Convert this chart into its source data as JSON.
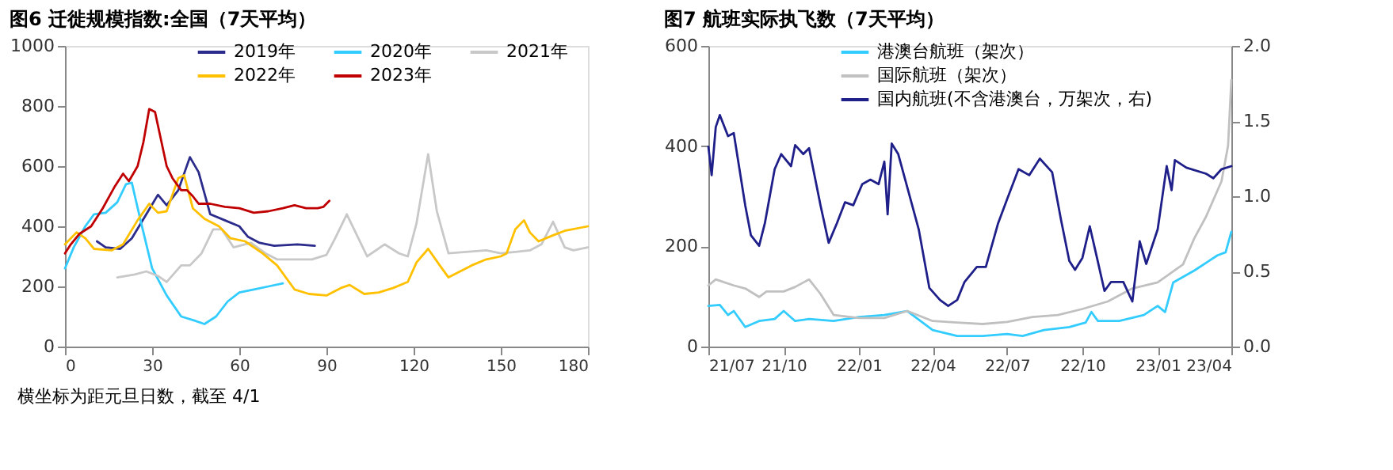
{
  "chart_data": [
    {
      "type": "line",
      "title": "图6 迁徙规模指数:全国（7天平均）",
      "legend": "top",
      "grid": false,
      "xlim": [
        0,
        180
      ],
      "xticks": [
        0,
        30,
        60,
        90,
        120,
        150,
        180
      ],
      "ylim": [
        0,
        1000
      ],
      "yticks": [
        0,
        200,
        400,
        600,
        800,
        1000
      ],
      "annotations": [
        "横坐标为距元旦日数，截至 4/1"
      ],
      "series": [
        {
          "name": "2019年",
          "color": "#2b2b8c",
          "x": [
            11,
            14,
            19,
            23,
            28,
            32,
            35,
            39,
            43,
            46,
            50,
            55,
            60,
            63,
            67,
            72,
            80,
            86
          ],
          "values": [
            350,
            330,
            325,
            360,
            440,
            505,
            470,
            520,
            630,
            580,
            440,
            420,
            400,
            365,
            345,
            335,
            340,
            335
          ]
        },
        {
          "name": "2020年",
          "color": "#33ccff",
          "x": [
            0,
            3,
            7,
            10,
            14,
            18,
            21,
            23,
            26,
            30,
            35,
            40,
            45,
            48,
            52,
            56,
            60,
            65,
            70,
            75
          ],
          "values": [
            260,
            330,
            400,
            440,
            445,
            480,
            540,
            545,
            420,
            260,
            170,
            100,
            85,
            75,
            100,
            150,
            180,
            190,
            200,
            210
          ]
        },
        {
          "name": "2021年",
          "color": "#c8c8c8",
          "x": [
            18,
            24,
            28,
            32,
            35,
            40,
            43,
            47,
            51,
            54,
            58,
            64,
            69,
            73,
            80,
            85,
            90,
            93,
            97,
            100,
            104,
            110,
            115,
            118,
            121,
            125,
            128,
            132,
            138,
            145,
            150,
            155,
            160,
            164,
            168,
            172,
            175,
            180
          ],
          "values": [
            230,
            240,
            250,
            235,
            215,
            270,
            270,
            310,
            390,
            390,
            330,
            345,
            310,
            290,
            290,
            290,
            305,
            360,
            440,
            380,
            300,
            340,
            310,
            300,
            410,
            640,
            450,
            310,
            315,
            320,
            310,
            315,
            320,
            340,
            415,
            330,
            320,
            330
          ]
        },
        {
          "name": "2022年",
          "color": "#ffc000",
          "x": [
            0,
            4,
            7,
            10,
            16,
            20,
            25,
            29,
            32,
            35,
            39,
            41,
            44,
            48,
            53,
            57,
            62,
            68,
            73,
            79,
            84,
            90,
            95,
            98,
            103,
            108,
            113,
            118,
            121,
            125,
            129,
            132,
            140,
            145,
            150,
            152,
            155,
            158,
            160,
            163,
            168,
            172,
            180
          ],
          "values": [
            340,
            380,
            360,
            325,
            320,
            340,
            420,
            475,
            445,
            450,
            560,
            570,
            460,
            425,
            400,
            360,
            350,
            310,
            270,
            190,
            175,
            170,
            195,
            205,
            175,
            180,
            195,
            215,
            280,
            325,
            270,
            230,
            270,
            290,
            300,
            310,
            390,
            420,
            380,
            350,
            370,
            385,
            400
          ]
        },
        {
          "name": "2023年",
          "color": "#c00000",
          "x": [
            0,
            2,
            5,
            9,
            13,
            17,
            20,
            22,
            25,
            27,
            29,
            31,
            33,
            35,
            37,
            40,
            42,
            44,
            46,
            50,
            55,
            60,
            65,
            70,
            75,
            79,
            83,
            87,
            89,
            91
          ],
          "values": [
            310,
            340,
            375,
            400,
            460,
            530,
            575,
            550,
            600,
            680,
            790,
            780,
            690,
            600,
            560,
            520,
            520,
            500,
            475,
            475,
            465,
            460,
            445,
            450,
            460,
            470,
            460,
            460,
            465,
            485
          ]
        }
      ]
    },
    {
      "type": "line",
      "title": "图7 航班实际执飞数（7天平均）",
      "legend": "top",
      "grid": false,
      "xlim": [
        "2021-07-01",
        "2023-04-01"
      ],
      "xticks": [
        {
          "value": "2021-07-01",
          "label": "21/07"
        },
        {
          "value": "2021-10-01",
          "label": "21/10"
        },
        {
          "value": "2022-01-01",
          "label": "22/01"
        },
        {
          "value": "2022-04-01",
          "label": "22/04"
        },
        {
          "value": "2022-07-01",
          "label": "22/07"
        },
        {
          "value": "2022-10-01",
          "label": "22/10"
        },
        {
          "value": "2023-01-01",
          "label": "23/01"
        },
        {
          "value": "2023-04-01",
          "label": "23/04"
        }
      ],
      "ylim": [
        0,
        600
      ],
      "yticks": [
        0,
        200,
        400,
        600
      ],
      "y2lim": [
        0,
        2.0
      ],
      "y2ticks": [
        {
          "value": 0,
          "label": "0.0"
        },
        0.5,
        {
          "value": 1,
          "label": "1.0"
        },
        1.5,
        {
          "value": 2,
          "label": "2.0"
        }
      ],
      "series": [
        {
          "name": "港澳台航班（架次）",
          "color": "#33ccff",
          "x": [
            "2021-07-01",
            "2021-07-15",
            "2021-07-25",
            "2021-08-01",
            "2021-08-15",
            "2021-09-01",
            "2021-09-20",
            "2021-10-01",
            "2021-10-15",
            "2021-11-01",
            "2021-12-01",
            "2022-01-01",
            "2022-02-01",
            "2022-03-01",
            "2022-04-01",
            "2022-05-01",
            "2022-06-01",
            "2022-07-01",
            "2022-07-20",
            "2022-08-15",
            "2022-09-15",
            "2022-10-05",
            "2022-10-12",
            "2022-10-20",
            "2022-11-15",
            "2022-12-15",
            "2023-01-01",
            "2023-01-10",
            "2023-01-20",
            "2023-02-15",
            "2023-03-15",
            "2023-03-25",
            "2023-04-01"
          ],
          "values": [
            81,
            83,
            63,
            71,
            39,
            51,
            55,
            71,
            51,
            55,
            51,
            59,
            63,
            71,
            33,
            21,
            21,
            25,
            21,
            33,
            39,
            48,
            69,
            51,
            51,
            63,
            81,
            69,
            128,
            152,
            182,
            188,
            229
          ]
        },
        {
          "name": "国际航班（架次）",
          "color": "#c0c0c0",
          "x": [
            "2021-07-01",
            "2021-07-10",
            "2021-08-01",
            "2021-08-15",
            "2021-09-01",
            "2021-09-10",
            "2021-10-01",
            "2021-10-15",
            "2021-11-01",
            "2021-11-15",
            "2021-12-01",
            "2022-01-01",
            "2022-02-01",
            "2022-03-01",
            "2022-04-01",
            "2022-05-01",
            "2022-06-01",
            "2022-07-01",
            "2022-08-01",
            "2022-09-01",
            "2022-10-01",
            "2022-11-01",
            "2022-12-01",
            "2023-01-01",
            "2023-02-01",
            "2023-02-15",
            "2023-03-01",
            "2023-03-20",
            "2023-03-28",
            "2023-04-01"
          ],
          "values": [
            122,
            134,
            122,
            116,
            99,
            110,
            110,
            119,
            134,
            105,
            63,
            57,
            57,
            71,
            51,
            48,
            45,
            49,
            59,
            63,
            75,
            90,
            116,
            128,
            164,
            217,
            259,
            330,
            401,
            532
          ]
        },
        {
          "name": "国内航班(不含港澳台，万架次，右)",
          "color": "#1f1f8a",
          "axis": "y2",
          "x": [
            "2021-07-01",
            "2021-07-05",
            "2021-07-10",
            "2021-07-15",
            "2021-07-25",
            "2021-08-01",
            "2021-08-15",
            "2021-08-22",
            "2021-09-01",
            "2021-09-08",
            "2021-09-20",
            "2021-09-28",
            "2021-10-10",
            "2021-10-15",
            "2021-10-25",
            "2021-11-01",
            "2021-11-15",
            "2021-11-25",
            "2021-12-05",
            "2021-12-15",
            "2021-12-25",
            "2022-01-05",
            "2022-01-15",
            "2022-01-25",
            "2022-02-01",
            "2022-02-05",
            "2022-02-10",
            "2022-02-18",
            "2022-03-01",
            "2022-03-15",
            "2022-03-28",
            "2022-04-10",
            "2022-04-20",
            "2022-05-01",
            "2022-05-10",
            "2022-05-25",
            "2022-06-05",
            "2022-06-20",
            "2022-07-01",
            "2022-07-15",
            "2022-07-28",
            "2022-08-10",
            "2022-08-25",
            "2022-09-05",
            "2022-09-15",
            "2022-09-22",
            "2022-10-01",
            "2022-10-10",
            "2022-10-18",
            "2022-10-28",
            "2022-11-05",
            "2022-11-20",
            "2022-12-01",
            "2022-12-10",
            "2022-12-18",
            "2023-01-01",
            "2023-01-12",
            "2023-01-18",
            "2023-01-22",
            "2023-02-05",
            "2023-03-01",
            "2023-03-10",
            "2023-03-20",
            "2023-04-01"
          ],
          "values": [
            1.33,
            1.14,
            1.46,
            1.54,
            1.4,
            1.42,
            0.94,
            0.74,
            0.67,
            0.82,
            1.18,
            1.28,
            1.2,
            1.34,
            1.28,
            1.32,
            0.94,
            0.69,
            0.82,
            0.96,
            0.94,
            1.08,
            1.11,
            1.08,
            1.23,
            0.88,
            1.35,
            1.28,
            1.06,
            0.78,
            0.39,
            0.31,
            0.27,
            0.31,
            0.43,
            0.53,
            0.53,
            0.82,
            0.98,
            1.18,
            1.14,
            1.25,
            1.16,
            0.84,
            0.57,
            0.51,
            0.59,
            0.8,
            0.61,
            0.37,
            0.43,
            0.43,
            0.3,
            0.7,
            0.55,
            0.78,
            1.2,
            1.04,
            1.24,
            1.19,
            1.15,
            1.12,
            1.18,
            1.2
          ]
        }
      ]
    }
  ]
}
